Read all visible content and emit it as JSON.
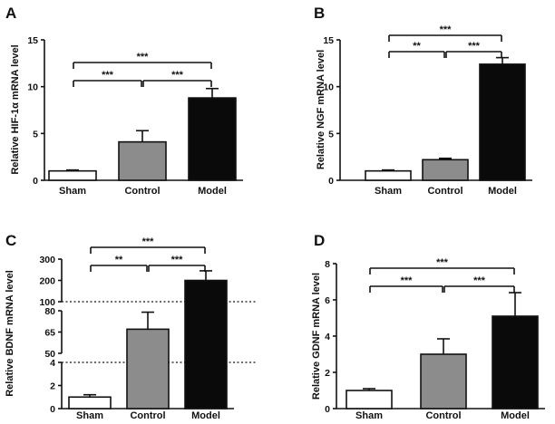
{
  "colors": {
    "sham": "#ffffff",
    "control": "#8c8c8c",
    "model": "#0a0a0a",
    "axis": "#111111"
  },
  "chart_data": [
    {
      "panel": "A",
      "type": "bar",
      "ylabel": "Relative HIF-1α mRNA level",
      "categories": [
        "Sham",
        "Control",
        "Model"
      ],
      "values": [
        1.0,
        4.1,
        8.8
      ],
      "errors": [
        0.1,
        1.2,
        1.0
      ],
      "ylim": [
        0,
        15
      ],
      "yticks": [
        0,
        5,
        10,
        15
      ],
      "significance": [
        {
          "from": 0,
          "to": 1,
          "label": "***"
        },
        {
          "from": 1,
          "to": 2,
          "label": "***"
        },
        {
          "from": 0,
          "to": 2,
          "label": "***"
        }
      ]
    },
    {
      "panel": "B",
      "type": "bar",
      "ylabel": "Relative NGF mRNA level",
      "categories": [
        "Sham",
        "Control",
        "Model"
      ],
      "values": [
        1.0,
        2.2,
        12.4
      ],
      "errors": [
        0.1,
        0.15,
        0.7
      ],
      "ylim": [
        0,
        15
      ],
      "yticks": [
        0,
        5,
        10,
        15
      ],
      "significance": [
        {
          "from": 0,
          "to": 1,
          "label": "**"
        },
        {
          "from": 1,
          "to": 2,
          "label": "***"
        },
        {
          "from": 0,
          "to": 2,
          "label": "***"
        }
      ]
    },
    {
      "panel": "C",
      "type": "bar",
      "ylabel": "Relative BDNF mRNA level",
      "categories": [
        "Sham",
        "Control",
        "Model"
      ],
      "values": [
        1.0,
        67,
        200
      ],
      "errors": [
        0.2,
        12,
        45
      ],
      "axis_breaks": [
        4,
        100
      ],
      "segments": [
        {
          "range": [
            0,
            4
          ],
          "ticks": [
            0,
            2,
            4
          ]
        },
        {
          "range": [
            50,
            80
          ],
          "ticks": [
            50,
            65,
            80
          ]
        },
        {
          "range": [
            100,
            300
          ],
          "ticks": [
            100,
            200,
            300
          ]
        }
      ],
      "significance": [
        {
          "from": 0,
          "to": 1,
          "label": "**"
        },
        {
          "from": 1,
          "to": 2,
          "label": "***"
        },
        {
          "from": 0,
          "to": 2,
          "label": "***"
        }
      ]
    },
    {
      "panel": "D",
      "type": "bar",
      "ylabel": "Relative GDNF mRNA level",
      "categories": [
        "Sham",
        "Control",
        "Model"
      ],
      "values": [
        1.0,
        3.0,
        5.1
      ],
      "errors": [
        0.1,
        0.85,
        1.3
      ],
      "ylim": [
        0,
        8
      ],
      "yticks": [
        0,
        2,
        4,
        6,
        8
      ],
      "significance": [
        {
          "from": 0,
          "to": 1,
          "label": "***"
        },
        {
          "from": 1,
          "to": 2,
          "label": "***"
        },
        {
          "from": 0,
          "to": 2,
          "label": "***"
        }
      ]
    }
  ]
}
